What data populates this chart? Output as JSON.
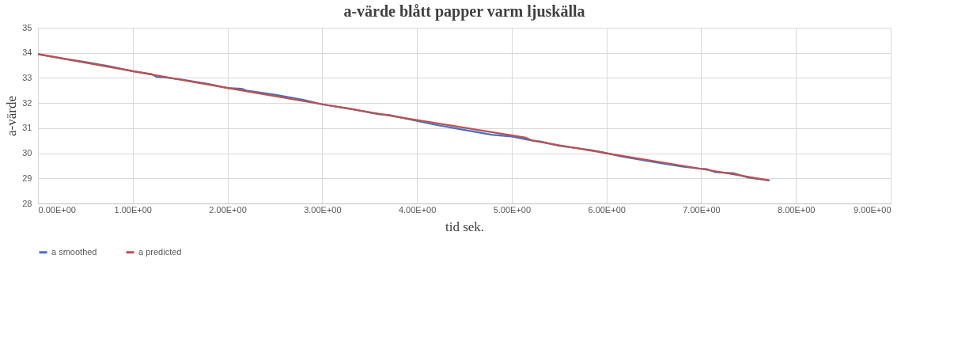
{
  "chart_data": {
    "type": "line",
    "title": "a-värde blått papper varm ljuskälla",
    "xlabel": "tid sek.",
    "ylabel": "a-värde",
    "xlim": [
      0,
      9
    ],
    "ylim": [
      28,
      35
    ],
    "xticks": [
      {
        "value": 0,
        "label": "0.00E+00"
      },
      {
        "value": 1,
        "label": "1.00E+00"
      },
      {
        "value": 2,
        "label": "2.00E+00"
      },
      {
        "value": 3,
        "label": "3.00E+00"
      },
      {
        "value": 4,
        "label": "4.00E+00"
      },
      {
        "value": 5,
        "label": "5.00E+00"
      },
      {
        "value": 6,
        "label": "6.00E+00"
      },
      {
        "value": 7,
        "label": "7.00E+00"
      },
      {
        "value": 8,
        "label": "8.00E+00"
      },
      {
        "value": 9,
        "label": "9.00E+00"
      }
    ],
    "yticks": [
      28,
      29,
      30,
      31,
      32,
      33,
      34,
      35
    ],
    "grid": true,
    "legend": "bottom",
    "marker": "none",
    "line_style": "solid",
    "series": [
      {
        "name": "a smoothed",
        "color": "#4472c4",
        "x": [
          0,
          0.3,
          0.5,
          0.75,
          1.0,
          1.2,
          1.25,
          1.35,
          1.55,
          1.8,
          2.0,
          2.15,
          2.2,
          2.5,
          2.8,
          3.0,
          3.3,
          3.6,
          3.7,
          3.9,
          4.2,
          4.5,
          4.8,
          5.0,
          5.2,
          5.3,
          5.5,
          5.7,
          5.85,
          5.95,
          6.15,
          6.5,
          6.8,
          7.0,
          7.05,
          7.15,
          7.35,
          7.5,
          7.72
        ],
        "values": [
          33.95,
          33.75,
          33.63,
          33.47,
          33.27,
          33.15,
          33.04,
          33.02,
          32.92,
          32.76,
          32.6,
          32.57,
          32.5,
          32.33,
          32.13,
          31.95,
          31.77,
          31.55,
          31.53,
          31.37,
          31.13,
          30.93,
          30.73,
          30.67,
          30.52,
          30.47,
          30.3,
          30.2,
          30.12,
          30.05,
          29.88,
          29.65,
          29.47,
          29.38,
          29.38,
          29.25,
          29.2,
          29.03,
          28.92
        ]
      },
      {
        "name": "a predicted",
        "color": "#c0504d",
        "x": [
          0,
          1,
          2,
          3,
          4,
          5.15,
          5.22,
          6,
          7,
          7.72
        ],
        "values": [
          33.95,
          33.27,
          32.6,
          31.95,
          31.32,
          30.62,
          30.5,
          30.0,
          29.38,
          28.92
        ]
      }
    ]
  }
}
